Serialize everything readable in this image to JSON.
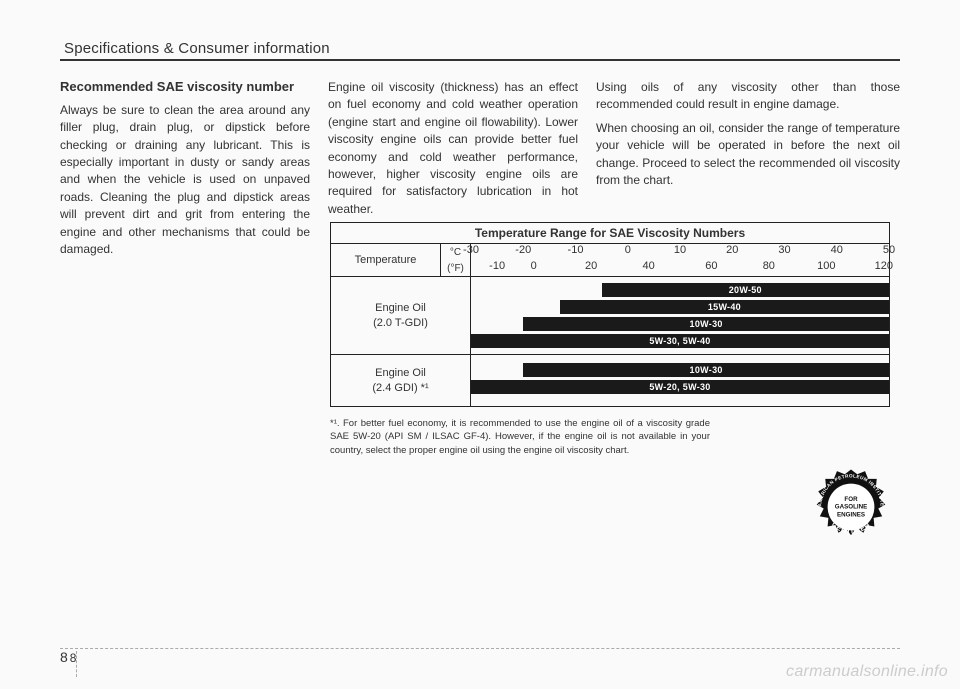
{
  "header": {
    "title": "Specifications & Consumer information"
  },
  "col1": {
    "subhead": "Recommended SAE viscosity number",
    "body": "Always be sure to clean the area around any filler plug, drain plug, or dipstick before checking or draining any lubricant. This is especially important in dusty or sandy areas and when the vehicle is used on unpaved roads. Cleaning the plug and dipstick areas will prevent dirt and grit from entering the engine and other mechanisms that could be damaged."
  },
  "col2": {
    "body": "Engine oil viscosity (thickness) has an effect on fuel economy and cold weather operation (engine start and engine oil flowability). Lower viscosity engine oils can provide better fuel economy and cold weather performance, however, higher viscosity engine oils are required for satisfactory lubrication in hot weather."
  },
  "col3": {
    "body1": "Using oils of any viscosity other than those recommended could result in engine damage.",
    "body2": "When choosing an oil, consider the range of temperature your vehicle will be operated in before the next oil change. Proceed to select the recommended oil viscosity from the chart."
  },
  "chart": {
    "title": "Temperature Range for SAE Viscosity Numbers",
    "temp_label": "Temperature",
    "unit_c": "°C",
    "unit_f": "(°F)",
    "scale_c": [
      "-30",
      "-20",
      "-10",
      "0",
      "10",
      "20",
      "30",
      "40",
      "50"
    ],
    "scale_f": [
      "-10",
      "0",
      "20",
      "40",
      "60",
      "80",
      "100",
      "120"
    ],
    "scale_c_min": -30,
    "scale_c_max": 50,
    "rows": [
      {
        "label": "Engine Oil\n(2.0 T-GDI)",
        "bars": [
          {
            "label": "20W-50",
            "from_c": -5,
            "to_c": 50,
            "y": 6
          },
          {
            "label": "15W-40",
            "from_c": -13,
            "to_c": 50,
            "y": 23
          },
          {
            "label": "10W-30",
            "from_c": -20,
            "to_c": 50,
            "y": 40
          },
          {
            "label": "5W-30, 5W-40",
            "from_c": -30,
            "to_c": 50,
            "y": 57
          }
        ],
        "height": 78
      },
      {
        "label": "Engine Oil\n(2.4 GDI) *¹",
        "bars": [
          {
            "label": "10W-30",
            "from_c": -20,
            "to_c": 50,
            "y": 8
          },
          {
            "label": "5W-20, 5W-30",
            "from_c": -30,
            "to_c": 50,
            "y": 25
          }
        ],
        "height": 52
      }
    ],
    "bar_bg": "#1a1a1a",
    "bar_fg": "#ffffff"
  },
  "footnote": "*¹. For better fuel economy, it is recommended to use the engine oil of a viscosity grade SAE 5W-20 (API SM / ILSAC GF-4). However, if the engine oil is not available in your country, select the proper engine oil using the engine oil viscosity chart.",
  "api_seal": {
    "top": "AMERICAN PETROLEUM INSTITUTE",
    "center1": "FOR",
    "center2": "GASOLINE",
    "center3": "ENGINES",
    "bottom": "CERTIFIED"
  },
  "page": {
    "section": "8",
    "num": "8"
  },
  "watermark": "carmanualsonline.info"
}
